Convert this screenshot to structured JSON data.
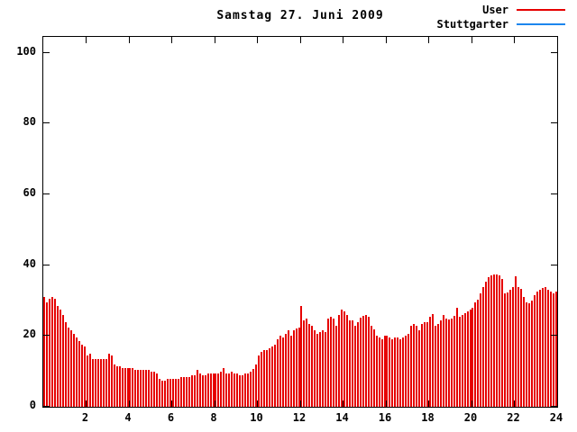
{
  "title": "Samstag 27. Juni 2009",
  "colors": {
    "background": "#ffffff",
    "axis": "#000000",
    "text": "#000000",
    "user_series": "#e60000",
    "stuttgarter_series": "#1c86ee"
  },
  "legend": {
    "position": "top-right",
    "entries": [
      "User",
      "Stuttgarter"
    ]
  },
  "chart_data": {
    "type": "bar",
    "title": "Samstag 27. Juni 2009",
    "xlabel": "",
    "ylabel": "",
    "xlim": [
      0,
      24
    ],
    "ylim": [
      0,
      104.5
    ],
    "xticks": [
      2,
      4,
      6,
      8,
      10,
      12,
      14,
      16,
      18,
      20,
      22,
      24
    ],
    "yticks": [
      0,
      20,
      40,
      60,
      80,
      100
    ],
    "grid": false,
    "legend_position": "top-right",
    "x_unit": "hour of day",
    "bar_interval_hours": 0.125,
    "series": [
      {
        "name": "User",
        "color": "#e60000",
        "values": [
          31,
          29.5,
          30.5,
          31,
          30.5,
          28.5,
          27.5,
          26,
          24,
          22.5,
          21.5,
          20.5,
          19.5,
          18.5,
          17.5,
          17,
          14.5,
          15,
          13.5,
          13.5,
          13.5,
          13.5,
          13.5,
          13.5,
          15,
          14.5,
          12,
          11.5,
          11.5,
          11,
          11,
          11,
          11,
          11,
          10.5,
          10.5,
          10.5,
          10.5,
          10.5,
          10.5,
          10,
          10,
          9.5,
          8,
          7.5,
          7.5,
          8,
          8,
          8,
          8,
          8,
          8.5,
          8.5,
          8.5,
          8.5,
          9,
          9,
          10.5,
          9.5,
          9,
          9,
          9.5,
          9.5,
          9.5,
          9.5,
          9.5,
          10,
          11,
          9.5,
          9.5,
          10,
          9.5,
          9.5,
          9,
          9,
          9.5,
          9.5,
          10,
          10.7,
          11.9,
          14.5,
          15.5,
          16,
          16,
          16.5,
          17,
          17.5,
          19,
          20,
          19.5,
          20.5,
          21.5,
          20,
          21.5,
          22,
          22.5,
          28.5,
          24.5,
          25,
          23.5,
          23,
          21.5,
          20.5,
          21,
          21.5,
          21,
          24.8,
          25.5,
          25,
          23,
          26,
          27.5,
          27,
          26,
          24.5,
          24.5,
          23,
          24,
          25.3,
          25.8,
          26,
          25.5,
          23,
          21.8,
          20,
          19.5,
          19.2,
          20.2,
          20,
          19.5,
          19,
          19.5,
          19.7,
          19,
          19.5,
          20,
          20.5,
          22.8,
          23.5,
          23,
          21.5,
          23.5,
          24,
          24,
          25.5,
          26.3,
          23,
          23.4,
          24.5,
          26,
          25,
          24.7,
          25,
          25.6,
          28,
          25.5,
          26,
          26.5,
          27,
          27.5,
          28,
          29.5,
          30.3,
          32,
          33.7,
          35.4,
          36.5,
          37,
          37.3,
          37.3,
          37,
          36.2,
          32,
          32.4,
          33,
          33.7,
          36.9,
          33.8,
          33.3,
          31,
          29.5,
          29.2,
          30,
          31.5,
          32.5,
          33,
          33.5,
          33.8,
          33,
          32.5,
          32,
          32.5
        ]
      },
      {
        "name": "Stuttgarter",
        "color": "#1c86ee",
        "values": []
      }
    ]
  }
}
